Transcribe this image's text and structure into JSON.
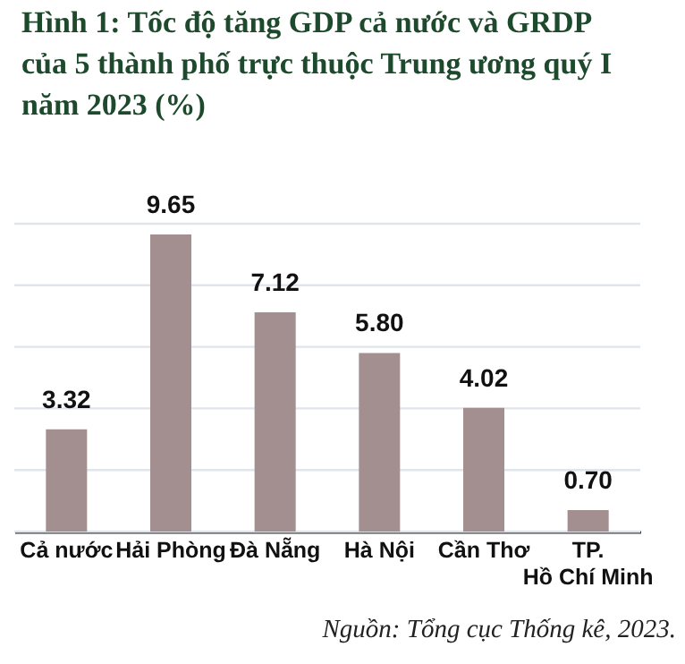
{
  "chart_data": {
    "type": "bar",
    "title": "Hình 1: Tốc độ tăng GDP cả nước và GRDP của 5 thành phố trực thuộc Trung ương quý I năm 2023 (%)",
    "categories": [
      "Cả nước",
      "Hải Phòng",
      "Đà Nẵng",
      "Hà Nội",
      "Cần Thơ",
      "TP.\nHồ Chí Minh"
    ],
    "values": [
      3.32,
      9.65,
      7.12,
      5.8,
      4.02,
      0.7
    ],
    "value_labels": [
      "3.32",
      "9.65",
      "7.12",
      "5.80",
      "4.02",
      "0.70"
    ],
    "color": "#a38f8f",
    "ylim": [
      0,
      10
    ],
    "yticks": [
      {
        "value": 0,
        "label": null
      },
      {
        "value": 2,
        "label": null
      },
      {
        "value": 4,
        "label": null
      },
      {
        "value": 6,
        "label": null
      },
      {
        "value": 8,
        "label": null
      },
      {
        "value": 10,
        "label": null
      }
    ],
    "grid": "y",
    "tick_labels": "x",
    "annotations": [
      "Nguồn: Tổng cục Thống kê, 2023."
    ]
  }
}
